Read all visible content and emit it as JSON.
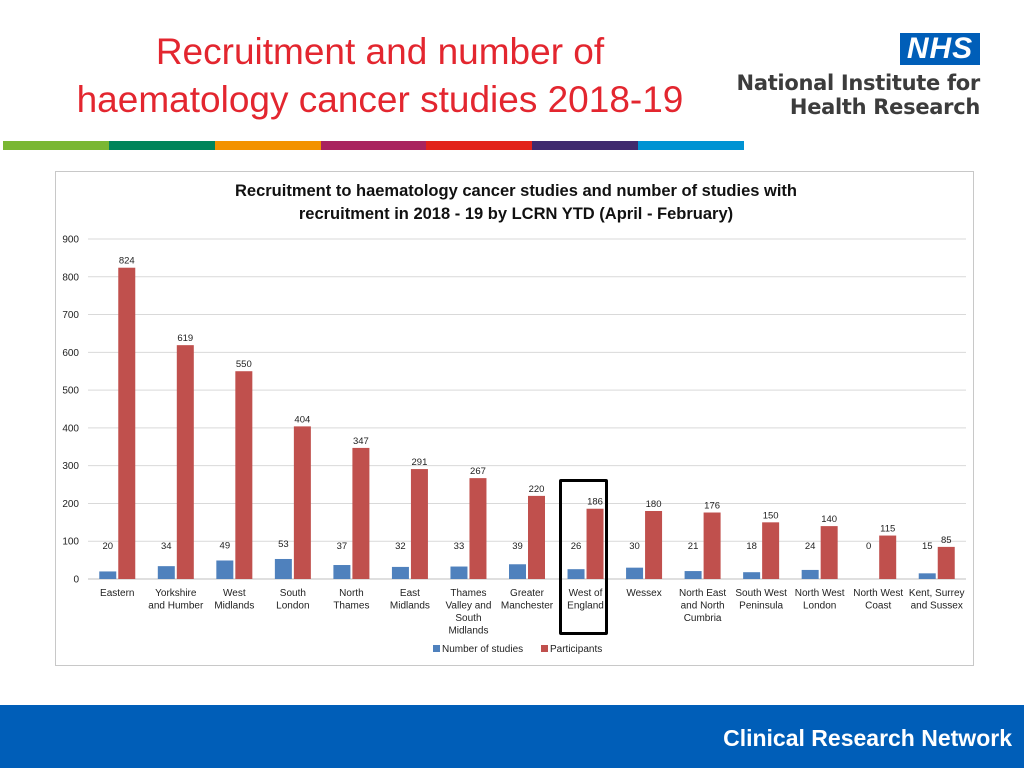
{
  "slide": {
    "title_line1": "Recruitment and number of",
    "title_line2": "haematology cancer studies 2018-19"
  },
  "logo": {
    "badge": "NHS",
    "line1": "National Institute for",
    "line2": "Health Research"
  },
  "color_band": [
    "#7ab733",
    "#00845a",
    "#f39200",
    "#a9235e",
    "#e2231a",
    "#3f2a6e",
    "#0093d3"
  ],
  "footer": {
    "label": "Clinical Research Network",
    "color": "#005eb8"
  },
  "chart_data": {
    "type": "bar",
    "title_line1": "Recruitment to haematology cancer studies and number of studies with",
    "title_line2": "recruitment in 2018 - 19 by LCRN YTD (April - February)",
    "categories": [
      [
        "Eastern"
      ],
      [
        "Yorkshire",
        "and Humber"
      ],
      [
        "West",
        "Midlands"
      ],
      [
        "South",
        "London"
      ],
      [
        "North",
        "Thames"
      ],
      [
        "East",
        "Midlands"
      ],
      [
        "Thames",
        "Valley and",
        "South",
        "Midlands"
      ],
      [
        "Greater",
        "Manchester"
      ],
      [
        "West of",
        "England"
      ],
      [
        "Wessex"
      ],
      [
        "North East",
        "and North",
        "Cumbria"
      ],
      [
        "South West",
        "Peninsula"
      ],
      [
        "North West",
        "London"
      ],
      [
        "North West",
        "Coast"
      ],
      [
        "Kent, Surrey",
        "and Sussex"
      ]
    ],
    "series": [
      {
        "name": "Number of studies",
        "color": "#4f81bd",
        "values": [
          20,
          34,
          49,
          53,
          37,
          32,
          33,
          39,
          26,
          30,
          21,
          18,
          24,
          0,
          15
        ]
      },
      {
        "name": "Participants",
        "color": "#c0504d",
        "values": [
          824,
          619,
          550,
          404,
          347,
          291,
          267,
          220,
          186,
          180,
          176,
          150,
          140,
          115,
          85
        ]
      }
    ],
    "ylim": [
      0,
      900
    ],
    "yticks": [
      0,
      100,
      200,
      300,
      400,
      500,
      600,
      700,
      800,
      900
    ],
    "grid": true,
    "legend_position": "bottom",
    "highlighted_category": "West of England"
  }
}
